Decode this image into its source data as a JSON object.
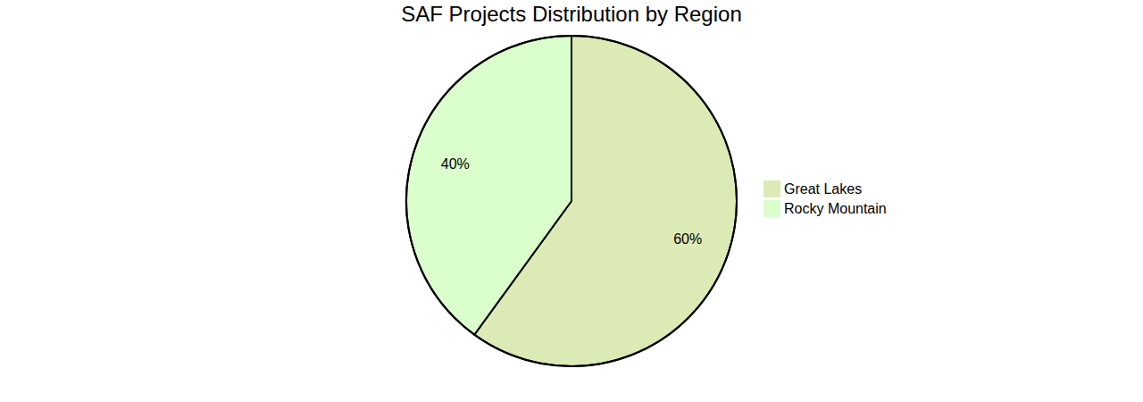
{
  "chart_data": {
    "type": "pie",
    "title": "SAF Projects Distribution by Region",
    "categories": [
      "Great Lakes",
      "Rocky Mountain"
    ],
    "values": [
      60,
      40
    ],
    "value_labels": [
      "60%",
      "40%"
    ],
    "colors": [
      "#dcebb6",
      "#daffcc"
    ],
    "data_labels": true,
    "legend": "right"
  }
}
